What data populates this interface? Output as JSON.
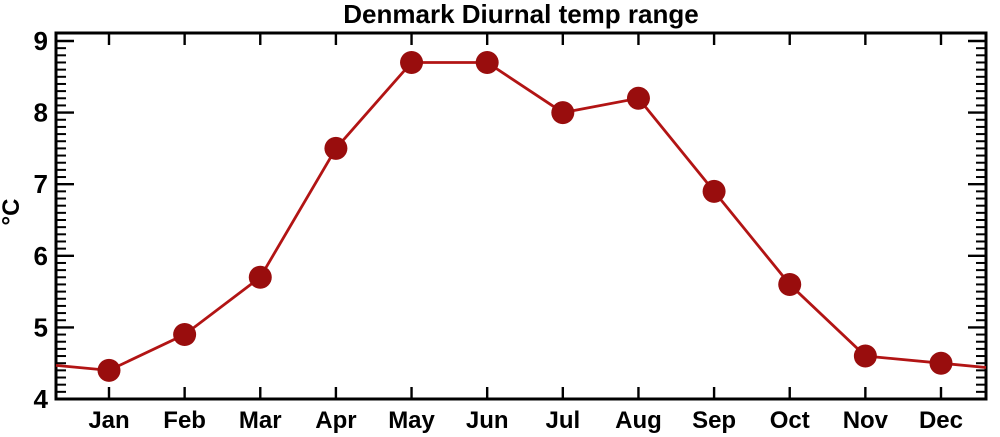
{
  "chart_data": {
    "type": "line",
    "title": "Denmark Diurnal temp range",
    "ylabel": "°C",
    "xlabel": "",
    "categories": [
      "Jan",
      "Feb",
      "Mar",
      "Apr",
      "May",
      "Jun",
      "Jul",
      "Aug",
      "Sep",
      "Oct",
      "Nov",
      "Dec"
    ],
    "values": [
      4.4,
      4.9,
      5.7,
      7.5,
      8.7,
      8.7,
      8.0,
      8.2,
      6.9,
      5.6,
      4.6,
      4.5
    ],
    "ylim": [
      4,
      9
    ],
    "y_major_ticks": [
      4,
      5,
      6,
      7,
      8,
      9
    ],
    "y_minor_step": 0.1,
    "grid": false,
    "legend": false,
    "frame": "box-with-inward-ticks",
    "line_extends_to_plot_edges": true,
    "edge_values": {
      "left": 4.47,
      "right": 4.44
    },
    "colors": {
      "line": "#b21414",
      "marker": "#990d0d",
      "axis": "#000000",
      "background": "#ffffff"
    },
    "marker_shape": "circle"
  }
}
